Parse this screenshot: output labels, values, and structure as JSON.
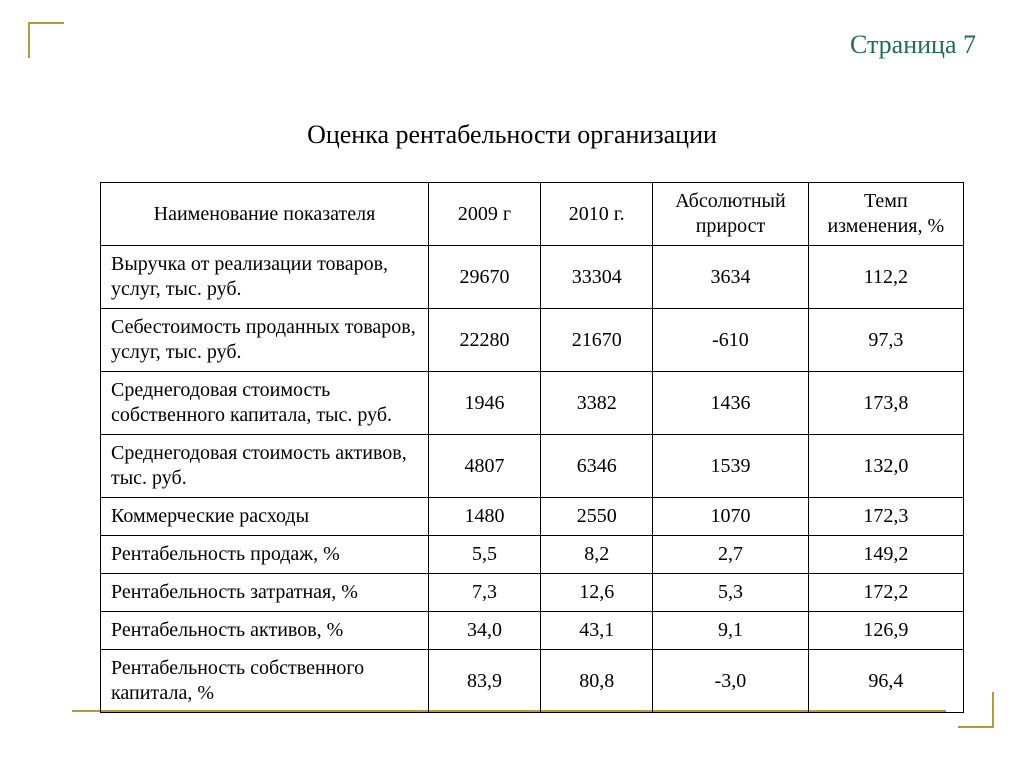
{
  "page_label": "Страница 7",
  "title": "Оценка рентабельности организации",
  "accent_color": "#b59a3a",
  "page_label_color": "#1f6f4f",
  "table": {
    "columns": [
      "Наименование показателя",
      "2009 г",
      "2010 г.",
      "Абсолютный прирост",
      "Темп изменения, %"
    ],
    "rows": [
      {
        "name": "Выручка от реализации товаров, услуг, тыс. руб.",
        "y2009": "29670",
        "y2010": "33304",
        "abs": "3634",
        "rate": "112,2"
      },
      {
        "name": "Себестоимость проданных товаров, услуг, тыс. руб.",
        "y2009": "22280",
        "y2010": "21670",
        "abs": "-610",
        "rate": "97,3"
      },
      {
        "name": "Среднегодовая стоимость собственного капитала, тыс. руб.",
        "y2009": "1946",
        "y2010": "3382",
        "abs": "1436",
        "rate": "173,8"
      },
      {
        "name": "Среднегодовая стоимость активов, тыс. руб.",
        "y2009": "4807",
        "y2010": "6346",
        "abs": "1539",
        "rate": "132,0"
      },
      {
        "name": "Коммерческие расходы",
        "y2009": "1480",
        "y2010": "2550",
        "abs": "1070",
        "rate": "172,3"
      },
      {
        "name": "Рентабельность продаж, %",
        "y2009": "5,5",
        "y2010": "8,2",
        "abs": "2,7",
        "rate": "149,2"
      },
      {
        "name": "Рентабельность затратная, %",
        "y2009": "7,3",
        "y2010": "12,6",
        "abs": "5,3",
        "rate": "172,2"
      },
      {
        "name": "Рентабельность активов, %",
        "y2009": "34,0",
        "y2010": "43,1",
        "abs": "9,1",
        "rate": "126,9"
      },
      {
        "name": "Рентабельность  собственного капитала, %",
        "y2009": "83,9",
        "y2010": "80,8",
        "abs": "-3,0",
        "rate": "96,4"
      }
    ]
  }
}
